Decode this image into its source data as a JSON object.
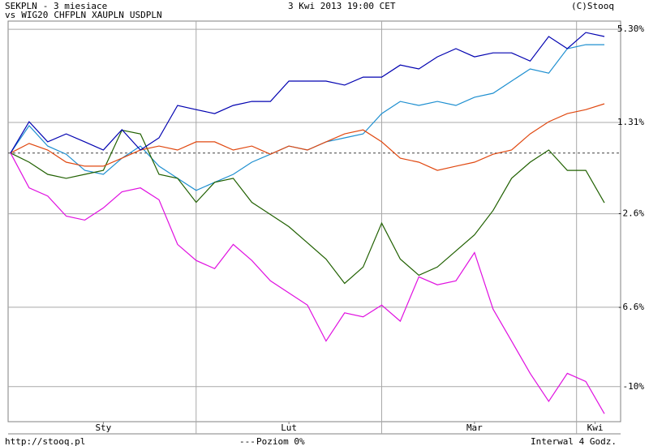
{
  "chart_data": {
    "type": "line",
    "title": "- 3 miesiace",
    "timestamp": "3 Kwi 2013 19:00 CET",
    "copyright": "(C)Stooq",
    "legend_prefix": "vs",
    "footer_url": "http://stooq.pl",
    "baseline_label": "Poziom 0%",
    "baseline": 0,
    "interval_label": "Interwal 4 Godz.",
    "xlim": [
      0,
      32
    ],
    "xticks": [
      {
        "value": 5,
        "label": "Sty"
      },
      {
        "value": 15,
        "label": "Lut"
      },
      {
        "value": 25,
        "label": "Mar"
      },
      {
        "value": 31.5,
        "label": "Kwi"
      }
    ],
    "xgrid": [
      10,
      20,
      30.5
    ],
    "ylim": [
      -11.5,
      5.65
    ],
    "yticks": [
      {
        "value": 5.3,
        "label": "5.30%"
      },
      {
        "value": 1.31,
        "label": "1.31%"
      },
      {
        "value": -2.6,
        "label": "-2.6%"
      },
      {
        "value": -6.6,
        "label": "-6.6%"
      },
      {
        "value": -10,
        "label": "-10%"
      }
    ],
    "grid": true,
    "series": [
      {
        "name": "SEKPLN",
        "color": "#0000b0",
        "values": [
          0,
          1.34,
          0.48,
          0.82,
          0.48,
          0.13,
          1.0,
          0.13,
          0.65,
          2.04,
          1.86,
          1.69,
          2.04,
          2.21,
          2.21,
          3.08,
          3.08,
          3.08,
          2.91,
          3.25,
          3.25,
          3.77,
          3.6,
          4.12,
          4.47,
          4.12,
          4.29,
          4.29,
          3.94,
          4.99,
          4.47,
          5.16,
          4.99
        ]
      },
      {
        "name": "WIG20",
        "color": "#e010e0",
        "values": [
          0,
          -1.49,
          -1.84,
          -2.7,
          -2.87,
          -2.35,
          -1.66,
          -1.49,
          -2.0,
          -3.91,
          -4.6,
          -4.95,
          -3.91,
          -4.6,
          -5.47,
          -5.99,
          -6.51,
          -8.05,
          -6.84,
          -7.01,
          -6.51,
          -7.2,
          -5.3,
          -5.64,
          -5.47,
          -4.26,
          -6.68,
          -8.05,
          -9.43,
          -10.63,
          -9.43,
          -9.78,
          -11.16
        ]
      },
      {
        "name": "CHFPLN",
        "color": "#e04810",
        "values": [
          0,
          0.41,
          0.13,
          -0.39,
          -0.56,
          -0.56,
          -0.22,
          0.13,
          0.3,
          0.13,
          0.48,
          0.48,
          0.13,
          0.3,
          -0.05,
          0.3,
          0.13,
          0.48,
          0.82,
          0.99,
          0.48,
          -0.22,
          -0.39,
          -0.74,
          -0.56,
          -0.39,
          -0.05,
          0.13,
          0.82,
          1.34,
          1.69,
          1.86,
          2.11
        ]
      },
      {
        "name": "XAUPLN",
        "color": "#206000",
        "values": [
          0,
          -0.39,
          -0.91,
          -1.08,
          -0.91,
          -0.74,
          0.98,
          0.82,
          -0.91,
          -1.08,
          -2.11,
          -1.25,
          -1.08,
          -2.11,
          -2.63,
          -3.15,
          -3.84,
          -4.54,
          -5.58,
          -4.88,
          -3.0,
          -4.54,
          -5.23,
          -4.88,
          -4.19,
          -3.5,
          -2.46,
          -1.08,
          -0.39,
          0.13,
          -0.74,
          -0.74,
          -2.13
        ]
      },
      {
        "name": "USDPLN",
        "color": "#1e8fd0",
        "values": [
          0,
          1.17,
          0.3,
          -0.05,
          -0.74,
          -0.91,
          -0.22,
          0.3,
          -0.56,
          -1.08,
          -1.6,
          -1.25,
          -0.91,
          -0.39,
          -0.05,
          0.3,
          0.13,
          0.48,
          0.65,
          0.82,
          1.69,
          2.21,
          2.04,
          2.21,
          2.04,
          2.39,
          2.56,
          3.08,
          3.6,
          3.42,
          4.47,
          4.64,
          4.64
        ]
      }
    ]
  }
}
